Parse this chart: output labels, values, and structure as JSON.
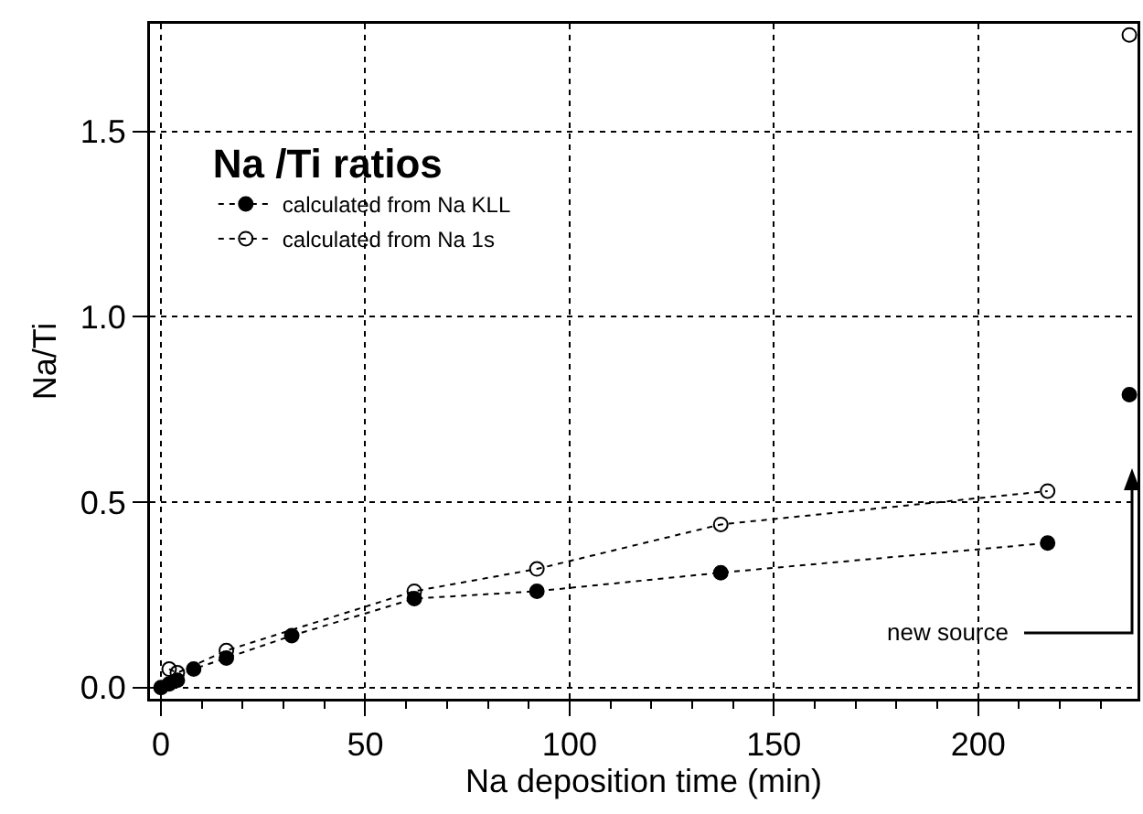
{
  "chart_data": {
    "type": "line",
    "xlabel": "Na deposition time (min)",
    "ylabel": "Na/Ti",
    "legend_title": "Na /Ti ratios",
    "xlim": [
      -2.7,
      239
    ],
    "ylim": [
      -0.03,
      1.79
    ],
    "xticks": [
      0,
      50,
      100,
      150,
      200
    ],
    "yticks": [
      {
        "value": 0,
        "label": "0.0"
      },
      {
        "value": 0.5,
        "label": "0.5"
      },
      {
        "value": 1,
        "label": "1.0"
      },
      {
        "value": 1.5,
        "label": "1.5"
      }
    ],
    "grid": true,
    "legend": "top left",
    "line_style": "dotted",
    "marker": "circle",
    "series": [
      {
        "name": "calculated from Na KLL",
        "color": "#000000",
        "x": [
          0,
          1,
          2,
          4,
          8,
          16,
          32,
          62,
          92,
          137,
          217
        ],
        "values": [
          0.0,
          null,
          0.01,
          0.02,
          0.05,
          0.08,
          0.14,
          0.24,
          0.26,
          0.31,
          0.39
        ]
      },
      {
        "name": "calculated from Na 1s",
        "color": "#000000",
        "marker": "circle-open",
        "x": [
          2,
          4,
          16,
          62,
          92,
          137,
          217
        ],
        "values": [
          0.05,
          0.04,
          0.1,
          0.26,
          0.32,
          0.44,
          0.53
        ]
      },
      {
        "type": "scatter",
        "color": "#000000",
        "x": [
          237
        ],
        "values": [
          0.79
        ]
      },
      {
        "type": "scatter",
        "color": "#000000",
        "marker": "circle-open",
        "x": [
          237
        ],
        "values": [
          1.76
        ]
      }
    ],
    "annotations": [
      "new source"
    ]
  }
}
